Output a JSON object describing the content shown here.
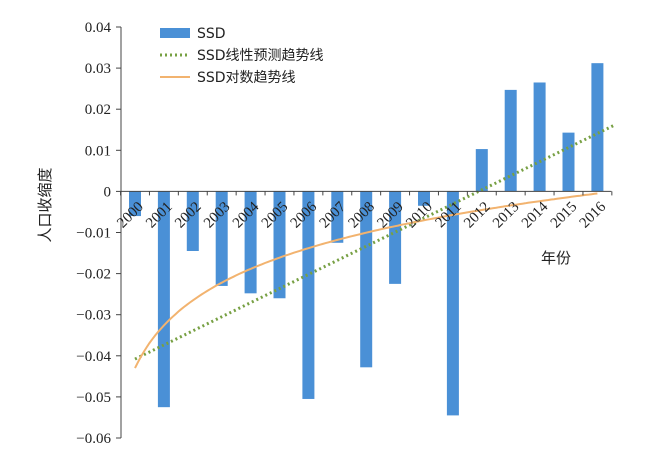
{
  "chart_data": {
    "type": "bar",
    "categories": [
      "2000",
      "2001",
      "2002",
      "2003",
      "2004",
      "2005",
      "2006",
      "2007",
      "2008",
      "2009",
      "2010",
      "2011",
      "2012",
      "2013",
      "2014",
      "2015",
      "2016"
    ],
    "series": [
      {
        "name": "SSD",
        "type": "bar",
        "color": "#4a90d6",
        "values": [
          -0.006,
          -0.0525,
          -0.0145,
          -0.023,
          -0.0248,
          -0.026,
          -0.0505,
          -0.0125,
          -0.0428,
          -0.0225,
          -0.0035,
          -0.0545,
          0.0103,
          0.0247,
          0.0265,
          0.0143,
          0.0312
        ]
      },
      {
        "name": "SSD线性预测趋势线",
        "type": "line",
        "style": "dotted",
        "color": "#77a043",
        "start": [
          2000,
          -0.0408
        ],
        "end": [
          2016,
          0.016
        ]
      },
      {
        "name": "SSD对数趋势线",
        "type": "line",
        "style": "solid",
        "color": "#f2b36f",
        "start": [
          2000,
          -0.043
        ],
        "end": [
          2016,
          -0.0005
        ]
      }
    ],
    "ylabel": "人口收缩度",
    "xlabel": "年份",
    "ylim": [
      -0.06,
      0.04
    ],
    "yticks": [
      0.04,
      0.03,
      0.02,
      0.01,
      0,
      -0.01,
      -0.02,
      -0.03,
      -0.04,
      -0.05,
      -0.06
    ],
    "ytick_labels": [
      "0.04",
      "0.03",
      "0.02",
      "0.01",
      "0",
      "−0.01",
      "−0.02",
      "−0.03",
      "−0.04",
      "−0.05",
      "−0.06"
    ],
    "grid": false,
    "legend_position": "top-left"
  }
}
